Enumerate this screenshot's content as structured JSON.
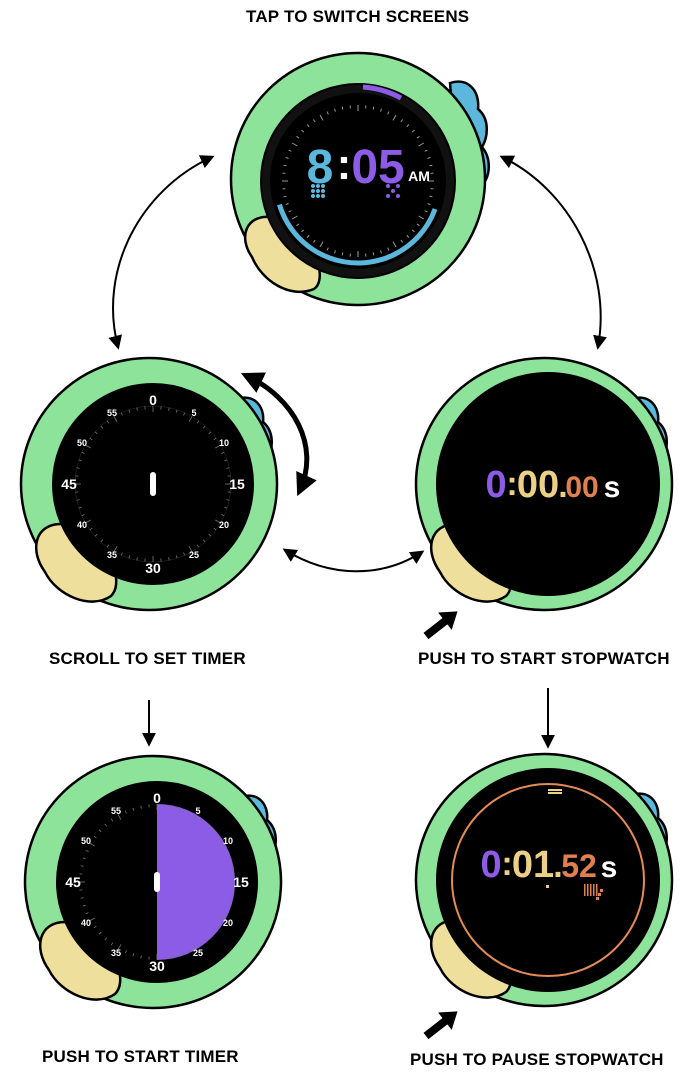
{
  "captions": {
    "top": "TAP TO SWITCH SCREENS",
    "scroll_timer": "SCROLL TO SET TIMER",
    "start_stopwatch": "PUSH TO START STOPWATCH",
    "start_timer": "PUSH TO START TIMER",
    "pause_stopwatch": "PUSH TO PAUSE STOPWATCH"
  },
  "clock": {
    "hour": "8",
    "colon": ":",
    "minutes": "05",
    "ampm": "AM"
  },
  "timer": {
    "marks": [
      "0",
      "5",
      "10",
      "15",
      "20",
      "25",
      "30",
      "35",
      "40",
      "45",
      "50",
      "55"
    ]
  },
  "timer_running": {
    "fill_fraction": 0.5
  },
  "stopwatch_idle": {
    "m": "0",
    "colon": ":",
    "s": "00",
    "dot": ".",
    "cs": "00",
    "unit": "s"
  },
  "stopwatch_running": {
    "m": "0",
    "colon": ":",
    "s": "01",
    "dot": ".",
    "cs": "52",
    "unit": "s"
  },
  "colors": {
    "green": "#8ee39a",
    "blue": "#5bb8dc",
    "yellow": "#efdf9c",
    "purple": "#8d5ce6",
    "yellow_text": "#ecd086",
    "orange": "#e08050",
    "ring_orange": "#e68a56"
  }
}
